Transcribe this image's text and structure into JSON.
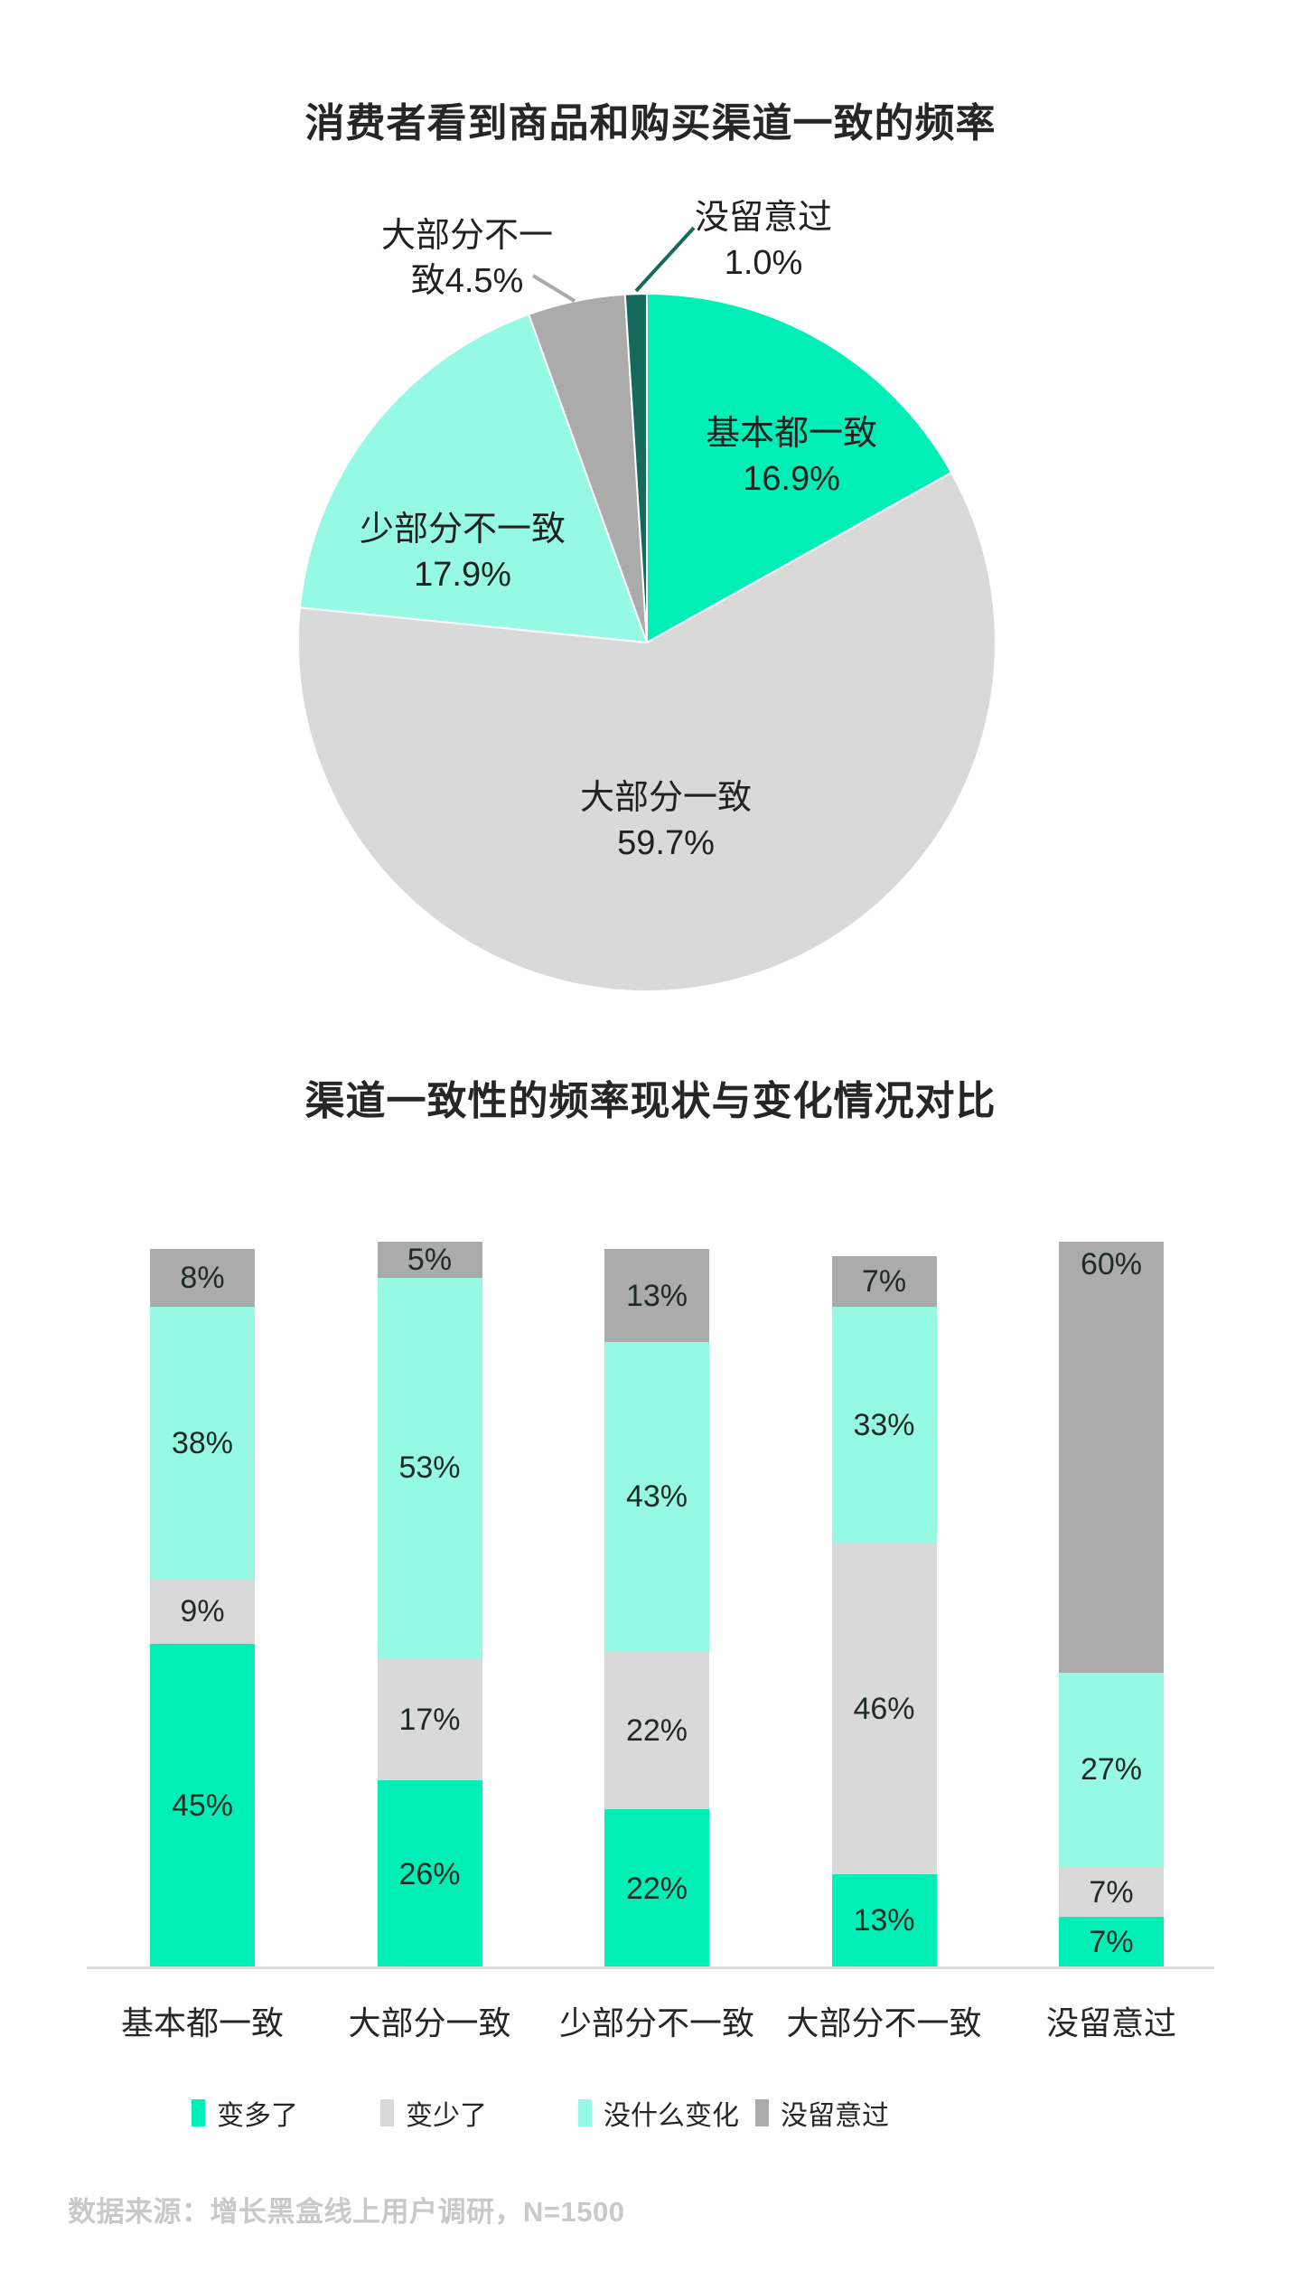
{
  "page": {
    "background": "#ffffff"
  },
  "colors": {
    "green": "#00EFB6",
    "mint": "#96F9E3",
    "lightgray": "#D9D9D9",
    "midgray": "#ABABAB",
    "darkteal": "#16695D",
    "title_text": "#262626",
    "label_text": "#212121",
    "axis_line": "#DBDBDB",
    "footer_text": "#C9C9C9"
  },
  "chart_data": [
    {
      "type": "pie",
      "title": "消费者看到商品和购买渠道一致的频率",
      "direction": "clockwise",
      "start_angle_deg": 0,
      "legend_position": "none",
      "slices": [
        {
          "id": "mostly-consistent",
          "label": "基本都一致",
          "value": 16.9,
          "pct_text": "16.9%",
          "color_key": "green",
          "label_placement": "inside"
        },
        {
          "id": "largely-consistent",
          "label": "大部分一致",
          "value": 59.7,
          "pct_text": "59.7%",
          "color_key": "lightgray",
          "label_placement": "inside"
        },
        {
          "id": "slightly-inconsistent",
          "label": "少部分不一致",
          "value": 17.9,
          "pct_text": "17.9%",
          "color_key": "mint",
          "label_placement": "inside"
        },
        {
          "id": "largely-inconsistent",
          "label": "大部分不一致",
          "value": 4.5,
          "pct_text": "4.5%",
          "color_key": "midgray",
          "label_placement": "outside-callout"
        },
        {
          "id": "never-noticed",
          "label": "没留意过",
          "value": 1.0,
          "pct_text": "1.0%",
          "color_key": "darkteal",
          "label_placement": "outside-callout"
        }
      ]
    },
    {
      "type": "stacked-bar",
      "title": "渠道一致性的频率现状与变化情况对比",
      "categories": [
        "基本都一致",
        "大部分一致",
        "少部分不一致",
        "大部分不一致",
        "没留意过"
      ],
      "ylim": [
        0,
        100
      ],
      "unit": "%",
      "grid": false,
      "series_bottom_to_top": [
        {
          "name": "变多了",
          "color_key": "green",
          "values": [
            45,
            26,
            22,
            13,
            7
          ]
        },
        {
          "name": "变少了",
          "color_key": "lightgray",
          "values": [
            9,
            17,
            22,
            46,
            7
          ]
        },
        {
          "name": "没什么变化",
          "color_key": "mint",
          "values": [
            38,
            53,
            43,
            33,
            27
          ]
        },
        {
          "name": "没留意过",
          "color_key": "midgray",
          "values": [
            8,
            5,
            13,
            7,
            60
          ]
        }
      ],
      "label_align_overrides": [
        {
          "series_index": 3,
          "category_index": 4,
          "align": "top"
        }
      ],
      "legend": {
        "position": "bottom",
        "items": [
          "变多了",
          "变少了",
          "没什么变化",
          "没留意过"
        ]
      }
    }
  ],
  "footer": {
    "source_text": "数据来源：增长黑盒线上用户调研，N=1500"
  }
}
